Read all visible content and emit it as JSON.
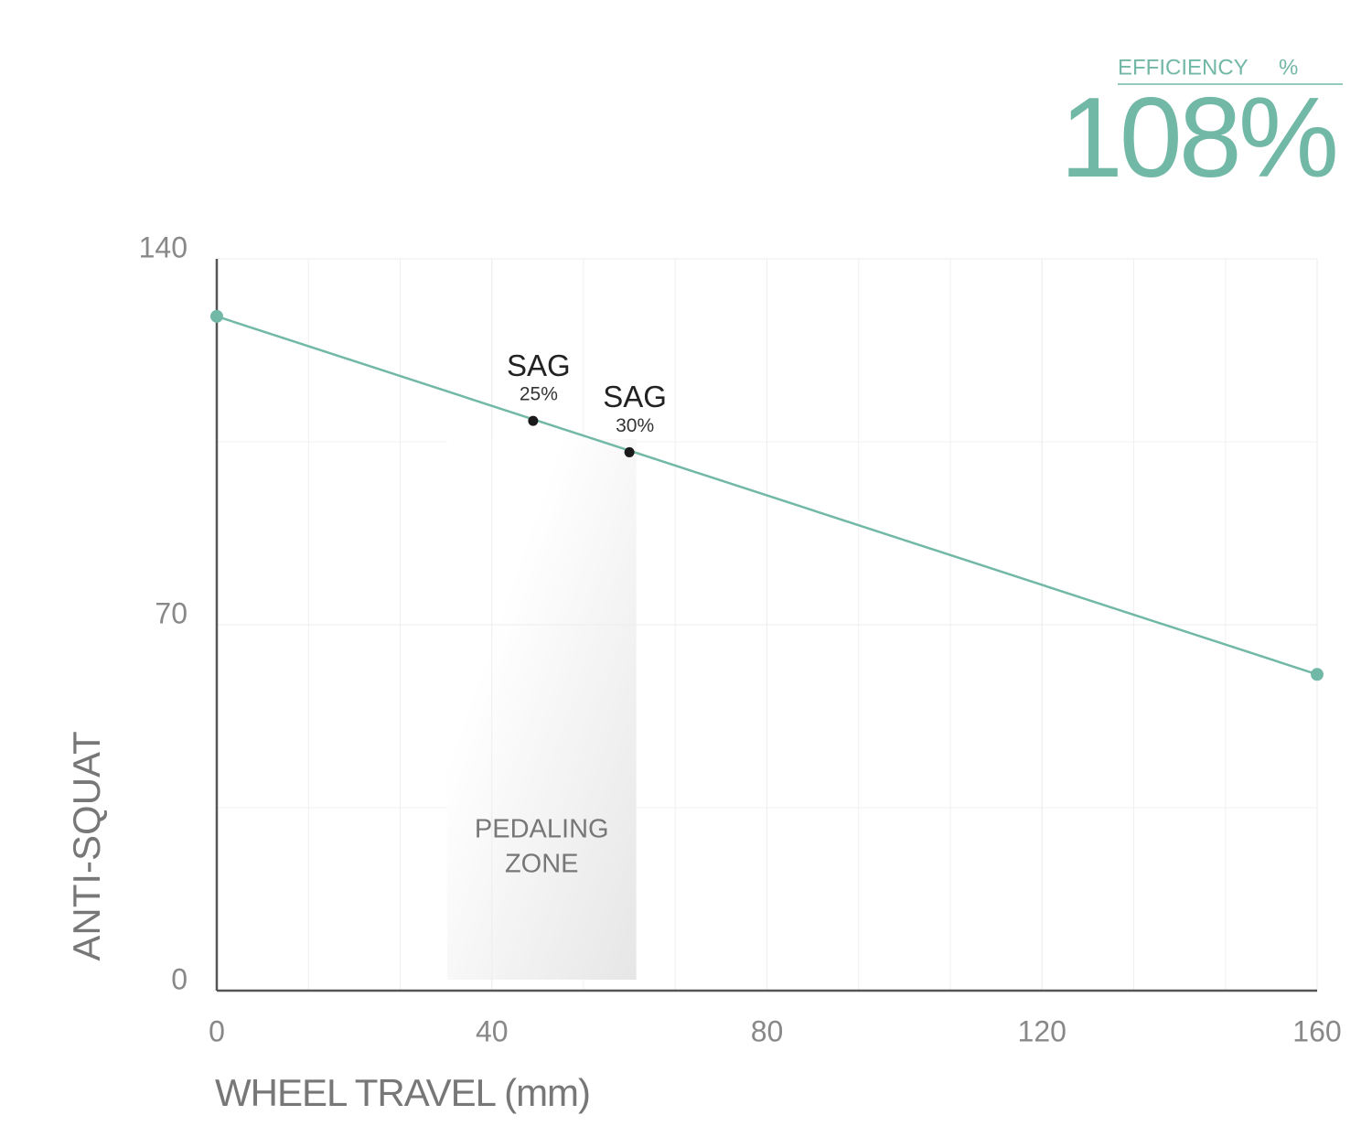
{
  "efficiency": {
    "title": "EFFICIENCY",
    "unit": "%",
    "value": "108%"
  },
  "chart_data": {
    "type": "line",
    "x_label": "WHEEL TRAVEL (mm)",
    "y_label": "ANTI-SQUAT",
    "xlim": [
      0,
      160
    ],
    "ylim": [
      0,
      140
    ],
    "xticks": [
      0,
      40,
      80,
      120,
      160
    ],
    "yticks": [
      0,
      70,
      140
    ],
    "grid": true,
    "series": [
      {
        "name": "Anti-squat",
        "color": "#72b8a7",
        "x": [
          0,
          160
        ],
        "values": [
          129,
          60.5
        ]
      }
    ],
    "annotations": [
      {
        "label": "SAG",
        "sublabel": "25%",
        "x": 46,
        "y": 109
      },
      {
        "label": "SAG",
        "sublabel": "30%",
        "x": 60,
        "y": 103
      }
    ],
    "zone": {
      "lines": [
        "PEDALING",
        "ZONE"
      ],
      "xlim": [
        33.5,
        61
      ]
    }
  }
}
